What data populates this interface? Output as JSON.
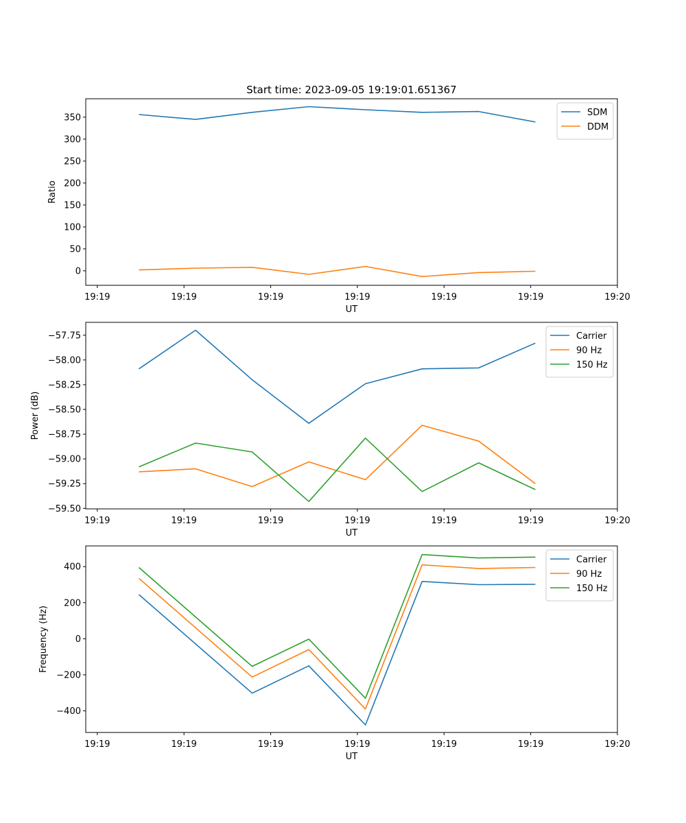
{
  "chart_data": [
    {
      "type": "line",
      "title": "Start time: 2023-09-05 19:19:01.651367",
      "xlabel": "UT",
      "ylabel": "Ratio",
      "xlim": [
        -0.2,
        9
      ],
      "ylim": [
        -33,
        392
      ],
      "x_ticks": [
        0,
        1.5,
        3,
        4.5,
        6,
        7.5,
        9
      ],
      "x_tick_labels": [
        "19:19",
        "19:19",
        "19:19",
        "19:19",
        "19:19",
        "19:19",
        "19:20"
      ],
      "y_ticks": [
        0,
        50,
        100,
        150,
        200,
        250,
        300,
        350
      ],
      "y_tick_labels": [
        "0",
        "50",
        "100",
        "150",
        "200",
        "250",
        "300",
        "350"
      ],
      "x": [
        0.72,
        1.7,
        2.68,
        3.66,
        4.64,
        5.62,
        6.6,
        7.58
      ],
      "series": [
        {
          "name": "SDM",
          "color": "#1f77b4",
          "values": [
            356,
            345,
            361,
            374,
            367,
            361,
            363,
            339
          ]
        },
        {
          "name": "DDM",
          "color": "#ff7f0e",
          "values": [
            2,
            6,
            8,
            -8,
            10,
            -13,
            -4,
            -1
          ]
        }
      ],
      "legend_position": "top-right"
    },
    {
      "type": "line",
      "xlabel": "UT",
      "ylabel": "Power (dB)",
      "xlim": [
        -0.2,
        9
      ],
      "ylim": [
        -59.505,
        -57.62
      ],
      "x_ticks": [
        0,
        1.5,
        3,
        4.5,
        6,
        7.5,
        9
      ],
      "x_tick_labels": [
        "19:19",
        "19:19",
        "19:19",
        "19:19",
        "19:19",
        "19:19",
        "19:20"
      ],
      "y_ticks": [
        -59.5,
        -59.25,
        -59.0,
        -58.75,
        -58.5,
        -58.25,
        -58.0,
        -57.75
      ],
      "y_tick_labels": [
        "−59.50",
        "−59.25",
        "−59.00",
        "−58.75",
        "−58.50",
        "−58.25",
        "−58.00",
        "−57.75"
      ],
      "x": [
        0.72,
        1.7,
        2.68,
        3.66,
        4.64,
        5.62,
        6.6,
        7.58
      ],
      "series": [
        {
          "name": "Carrier",
          "color": "#1f77b4",
          "values": [
            -58.09,
            -57.7,
            -58.2,
            -58.64,
            -58.24,
            -58.09,
            -58.08,
            -57.83
          ]
        },
        {
          "name": "90 Hz",
          "color": "#ff7f0e",
          "values": [
            -59.13,
            -59.1,
            -59.28,
            -59.03,
            -59.21,
            -58.66,
            -58.82,
            -59.25
          ]
        },
        {
          "name": "150 Hz",
          "color": "#2ca02c",
          "values": [
            -59.08,
            -58.84,
            -58.93,
            -59.43,
            -58.79,
            -59.33,
            -59.04,
            -59.31
          ]
        }
      ],
      "legend_position": "top-right"
    },
    {
      "type": "line",
      "xlabel": "UT",
      "ylabel": "Frequency (Hz)",
      "xlim": [
        -0.2,
        9
      ],
      "ylim": [
        -520,
        515
      ],
      "x_ticks": [
        0,
        1.5,
        3,
        4.5,
        6,
        7.5,
        9
      ],
      "x_tick_labels": [
        "19:19",
        "19:19",
        "19:19",
        "19:19",
        "19:19",
        "19:19",
        "19:20"
      ],
      "y_ticks": [
        -400,
        -200,
        0,
        200,
        400
      ],
      "y_tick_labels": [
        "−400",
        "−200",
        "0",
        "200",
        "400"
      ],
      "x": [
        0.72,
        2.68,
        3.66,
        4.64,
        5.62,
        6.6,
        7.58
      ],
      "series": [
        {
          "name": "Carrier",
          "color": "#1f77b4",
          "values": [
            245,
            -302,
            -150,
            -478,
            318,
            300,
            302
          ]
        },
        {
          "name": "90 Hz",
          "color": "#ff7f0e",
          "values": [
            335,
            -213,
            -60,
            -390,
            410,
            390,
            395
          ]
        },
        {
          "name": "150 Hz",
          "color": "#2ca02c",
          "values": [
            395,
            -153,
            -2,
            -330,
            467,
            448,
            453
          ]
        }
      ],
      "legend_position": "top-right"
    }
  ]
}
